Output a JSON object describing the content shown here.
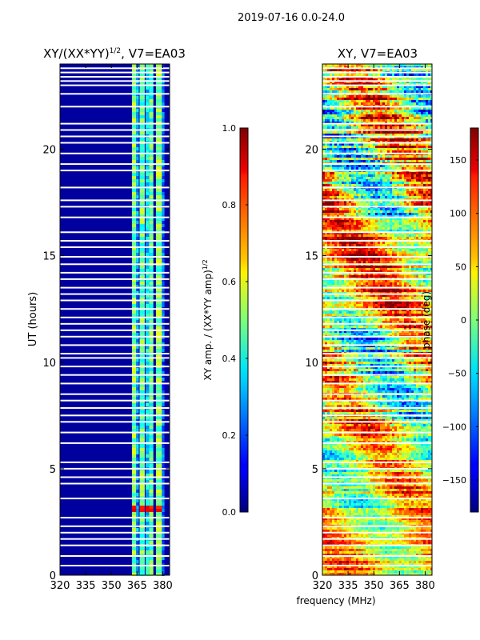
{
  "figure": {
    "suptitle": "2019-07-16 0.0-24.0",
    "shared_xlabel": "frequency (MHz)"
  },
  "chart_data": [
    {
      "type": "heatmap",
      "title": "XY/(XX*YY)^1/2, V7=EA03",
      "title_main": "XY/(XX*YY)",
      "title_sup": "1/2",
      "title_tail": ", V7=EA03",
      "xlabel": "frequency (MHz)",
      "ylabel": "UT (hours)",
      "xlim": [
        320,
        384
      ],
      "ylim": [
        0,
        24
      ],
      "xticks": [
        320,
        335,
        350,
        365,
        380
      ],
      "yticks": [
        0,
        5,
        10,
        15,
        20
      ],
      "colormap": "jet",
      "colorbar": {
        "label": "XY amp. / (XX*YY amp)^1/2",
        "label_main": "XY amp. / (XX*YY amp)",
        "label_sup": "1/2",
        "range": [
          0.0,
          1.0
        ],
        "ticks": [
          "0.0",
          "0.2",
          "0.4",
          "0.6",
          "0.8",
          "1.0"
        ]
      },
      "background_value": 0.03,
      "features": [
        {
          "freq_range": [
            362.0,
            364.5
          ],
          "value": 0.5
        },
        {
          "freq_range": [
            364.5,
            366.0
          ],
          "value": 0.28
        },
        {
          "freq_range": [
            366.5,
            369.5
          ],
          "value": 0.47
        },
        {
          "freq_range": [
            370.0,
            372.0
          ],
          "value": 0.35
        },
        {
          "freq_range": [
            372.0,
            374.5
          ],
          "value": 0.45
        },
        {
          "freq_range": [
            376.0,
            379.5
          ],
          "value": 0.5
        },
        {
          "freq_range": [
            379.5,
            381.0
          ],
          "value": 0.22
        }
      ],
      "hot_spot": {
        "ut_range": [
          3.0,
          3.4
        ],
        "value": 0.88
      },
      "gaps_ut": [
        0.45,
        0.9,
        1.4,
        1.7,
        2.0,
        2.3,
        2.7,
        3.6,
        4.3,
        4.6,
        5.0,
        5.3,
        6.2,
        6.7,
        7.2,
        7.5,
        7.85,
        8.2,
        8.5,
        9.0,
        9.4,
        9.8,
        10.2,
        10.4,
        10.8,
        11.2,
        11.5,
        11.8,
        12.1,
        12.5,
        12.9,
        13.2,
        13.5,
        13.9,
        14.2,
        14.6,
        14.95,
        15.4,
        15.7,
        16.1,
        16.8,
        17.3,
        17.6,
        18.2,
        19.0,
        19.3,
        19.8,
        20.3,
        20.6,
        20.9,
        21.2,
        22.0,
        22.6,
        23.0,
        23.2,
        23.4,
        23.6,
        23.8
      ]
    },
    {
      "type": "heatmap",
      "title": "XY, V7=EA03",
      "xlabel": "frequency (MHz)",
      "ylabel": "",
      "xlim": [
        320,
        384
      ],
      "ylim": [
        0,
        24
      ],
      "xticks": [
        320,
        335,
        350,
        365,
        380
      ],
      "yticks": [
        0,
        5,
        10,
        15,
        20
      ],
      "colormap": "jet",
      "colorbar": {
        "label": "phase (deg)",
        "range": [
          -180,
          180
        ],
        "ticks": [
          "−150",
          "−100",
          "−50",
          "0",
          "50",
          "100",
          "150"
        ]
      },
      "bands": [
        {
          "ut_range": [
            0,
            3
          ],
          "mean_phase": 60,
          "spread": 90
        },
        {
          "ut_range": [
            3,
            7
          ],
          "mean_phase": 40,
          "spread": 110
        },
        {
          "ut_range": [
            7,
            12
          ],
          "mean_phase": 20,
          "spread": 140
        },
        {
          "ut_range": [
            12,
            17
          ],
          "mean_phase": 70,
          "spread": 120
        },
        {
          "ut_range": [
            17,
            24
          ],
          "mean_phase": 30,
          "spread": 160
        }
      ],
      "gaps_ut": [
        0.45,
        0.9,
        1.4,
        1.7,
        2.0,
        2.3,
        2.7,
        3.6,
        4.3,
        4.6,
        5.0,
        5.3,
        6.2,
        6.7,
        7.2,
        7.5,
        7.85,
        8.2,
        8.5,
        9.0,
        9.4,
        9.8,
        10.2,
        10.4,
        10.8,
        11.2,
        11.5,
        11.8,
        12.1,
        12.5,
        12.9,
        13.2,
        13.5,
        13.9,
        14.2,
        14.6,
        14.95,
        15.4,
        15.7,
        16.1,
        16.8,
        17.3,
        17.6,
        18.2,
        19.0,
        19.3,
        19.8,
        20.3,
        20.6,
        20.9,
        21.2,
        22.0,
        22.6,
        23.0,
        23.2,
        23.4,
        23.6,
        23.8
      ]
    }
  ]
}
